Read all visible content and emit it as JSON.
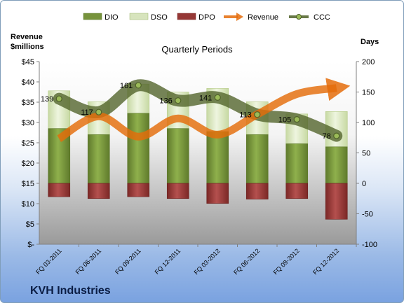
{
  "chart_data": {
    "type": "bar",
    "title": "Quarterly Periods",
    "company": "KVH Industries",
    "left_axis_title": [
      "Revenue",
      "$millions"
    ],
    "right_axis_title": "Days",
    "left_ticks": [
      "$-",
      "$5",
      "$10",
      "$15",
      "$20",
      "$25",
      "$30",
      "$35",
      "$40",
      "$45"
    ],
    "right_ticks": [
      "-100",
      "-50",
      "0",
      "50",
      "100",
      "150",
      "200"
    ],
    "left_ylim": [
      0,
      45
    ],
    "right_ylim": [
      -100,
      200
    ],
    "categories": [
      "FQ 03-2011",
      "FQ 06-2011",
      "FQ 09-2011",
      "FQ 12-2011",
      "FQ 03-2012",
      "FQ 06-2012",
      "FQ 09-2012",
      "FQ 12-2012"
    ],
    "legend": [
      "DIO",
      "DSO",
      "DPO",
      "Revenue",
      "CCC"
    ],
    "legend_position": "top",
    "colors": {
      "DIO": "#77933c",
      "DSO": "#d7e4bd",
      "DPO": "#953735",
      "Revenue": "#e46c0a",
      "CCC": "#4f6228"
    },
    "series": [
      {
        "name": "DIO",
        "axis": "days",
        "values": [
          90,
          80,
          115,
          90,
          85,
          80,
          65,
          60
        ]
      },
      {
        "name": "DSO",
        "axis": "days",
        "values": [
          62,
          54,
          48,
          60,
          71,
          54,
          49,
          58
        ]
      },
      {
        "name": "DPO",
        "axis": "days",
        "values": [
          -22,
          -25,
          -22,
          -25,
          -33,
          -26,
          -25,
          -59
        ]
      },
      {
        "name": "Revenue",
        "axis": "dollars",
        "values": [
          26,
          31.5,
          26.5,
          31,
          27,
          32,
          37,
          38.5
        ]
      },
      {
        "name": "CCC",
        "axis": "days",
        "values": [
          139,
          117,
          161,
          136,
          141,
          113,
          105,
          78
        ]
      }
    ],
    "ccc_labels": [
      "139",
      "117",
      "161",
      "136",
      "141",
      "113",
      "105",
      "78"
    ]
  }
}
